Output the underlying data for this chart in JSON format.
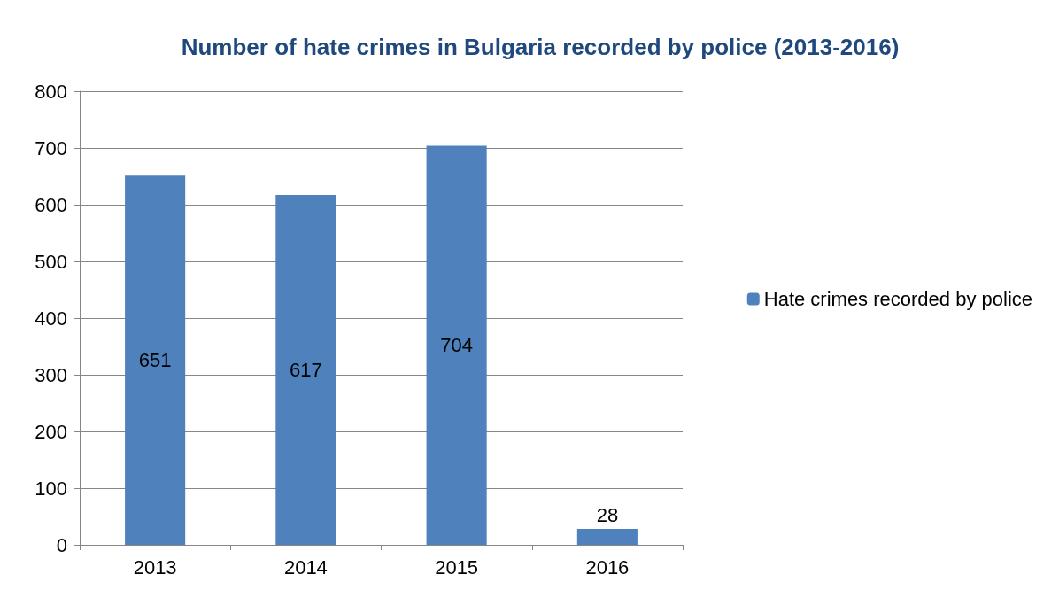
{
  "chart_data": {
    "type": "bar",
    "title": "Number of hate crimes in Bulgaria recorded by police (2013-2016)",
    "categories": [
      "2013",
      "2014",
      "2015",
      "2016"
    ],
    "series": [
      {
        "name": "Hate crimes recorded by police",
        "color": "#4f81bd",
        "values": [
          651,
          617,
          704,
          28
        ]
      }
    ],
    "ylim": [
      0,
      800
    ],
    "yticks": [
      0,
      100,
      200,
      300,
      400,
      500,
      600,
      700,
      800
    ],
    "grid": "y",
    "legend": "right",
    "data_labels": true
  }
}
